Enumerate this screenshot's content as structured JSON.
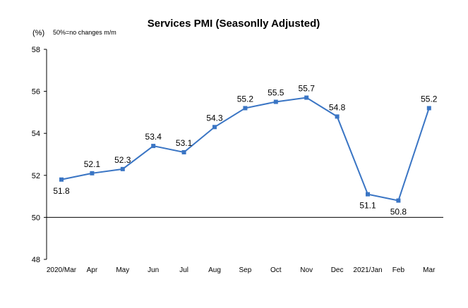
{
  "chart_data": {
    "type": "line",
    "title": "Services PMI (Seasonlly Adjusted)",
    "ylabel": "(%)",
    "note": "50%=no changes  m/m",
    "categories": [
      "2020/Mar",
      "Apr",
      "May",
      "Jun",
      "Jul",
      "Aug",
      "Sep",
      "Oct",
      "Nov",
      "Dec",
      "2021/Jan",
      "Feb",
      "Mar"
    ],
    "series": [
      {
        "values": [
          51.8,
          52.1,
          52.3,
          53.4,
          53.1,
          54.3,
          55.2,
          55.5,
          55.7,
          54.8,
          51.1,
          50.8,
          55.2
        ]
      }
    ],
    "data_labels": [
      "51.8",
      "52.1",
      "52.3",
      "53.4",
      "53.1",
      "54.3",
      "55.2",
      "55.5",
      "55.7",
      "54.8",
      "51.1",
      "50.8",
      "55.2"
    ],
    "ylim": [
      48,
      58
    ],
    "yticks": [
      48,
      50,
      52,
      54,
      56,
      58
    ],
    "ytick_labels": [
      "48",
      "50",
      "52",
      "54",
      "56",
      "58"
    ],
    "baseline": 50,
    "grid": false,
    "legend": "none",
    "line_color": "#3A75C4"
  }
}
